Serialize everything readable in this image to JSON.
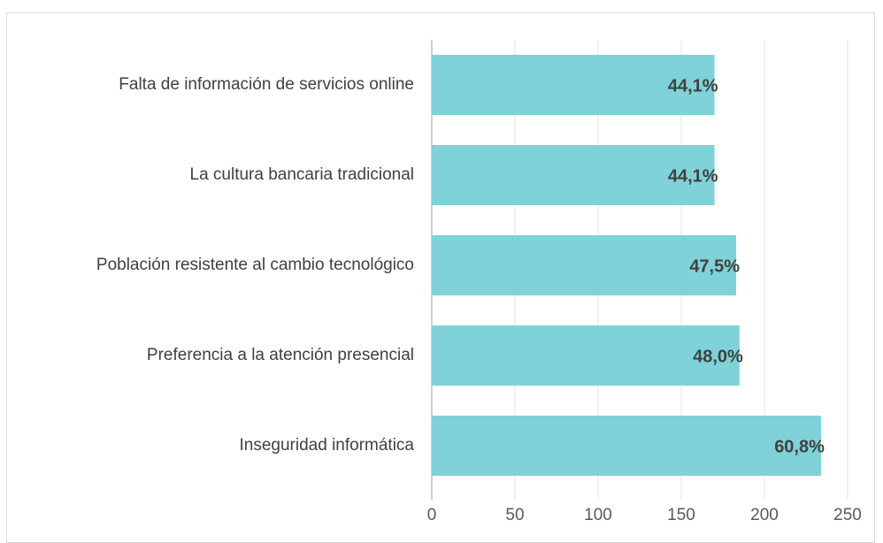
{
  "chart_data": {
    "type": "bar",
    "orientation": "horizontal",
    "categories": [
      "Falta de información de servicios online",
      "La cultura bancaria tradicional",
      "Población resistente al cambio tecnológico",
      "Preferencia a la atención presencial",
      "Inseguridad informática"
    ],
    "values": [
      170,
      170,
      183,
      185,
      234
    ],
    "value_labels": [
      "44,1%",
      "44,1%",
      "47,5%",
      "48,0%",
      "60,8%"
    ],
    "color": "#7fd2d7",
    "xlim": [
      0,
      250
    ],
    "xticks": [
      0,
      50,
      100,
      150,
      200,
      250
    ],
    "grid": true
  }
}
